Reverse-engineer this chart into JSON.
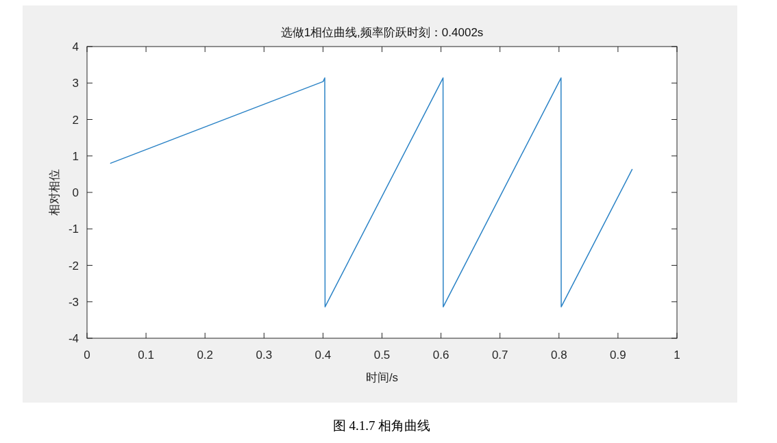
{
  "chart_data": {
    "type": "line",
    "title": "选做1相位曲线,频率阶跃时刻：0.4002s",
    "xlabel": "时间/s",
    "ylabel": "相对相位",
    "annotations": [
      "图 4.1.7 相角曲线"
    ],
    "x": [
      0.04,
      0.4002,
      0.403,
      0.4035,
      0.6035,
      0.6038,
      0.8035,
      0.8038,
      0.924
    ],
    "series": [
      {
        "color": "#2b83c6",
        "values": [
          0.8,
          3.04,
          3.14,
          -3.14,
          3.14,
          -3.14,
          3.14,
          -3.14,
          0.63
        ]
      }
    ],
    "xlim": [
      0,
      1
    ],
    "ylim": [
      -4,
      4
    ],
    "xticks": [
      0,
      0.1,
      0.2,
      0.3,
      0.4,
      0.5,
      0.6,
      0.7,
      0.8,
      0.9,
      1
    ],
    "yticks": [
      -4,
      -3,
      -2,
      -1,
      0,
      1,
      2,
      3,
      4
    ],
    "line_style": "solid"
  }
}
